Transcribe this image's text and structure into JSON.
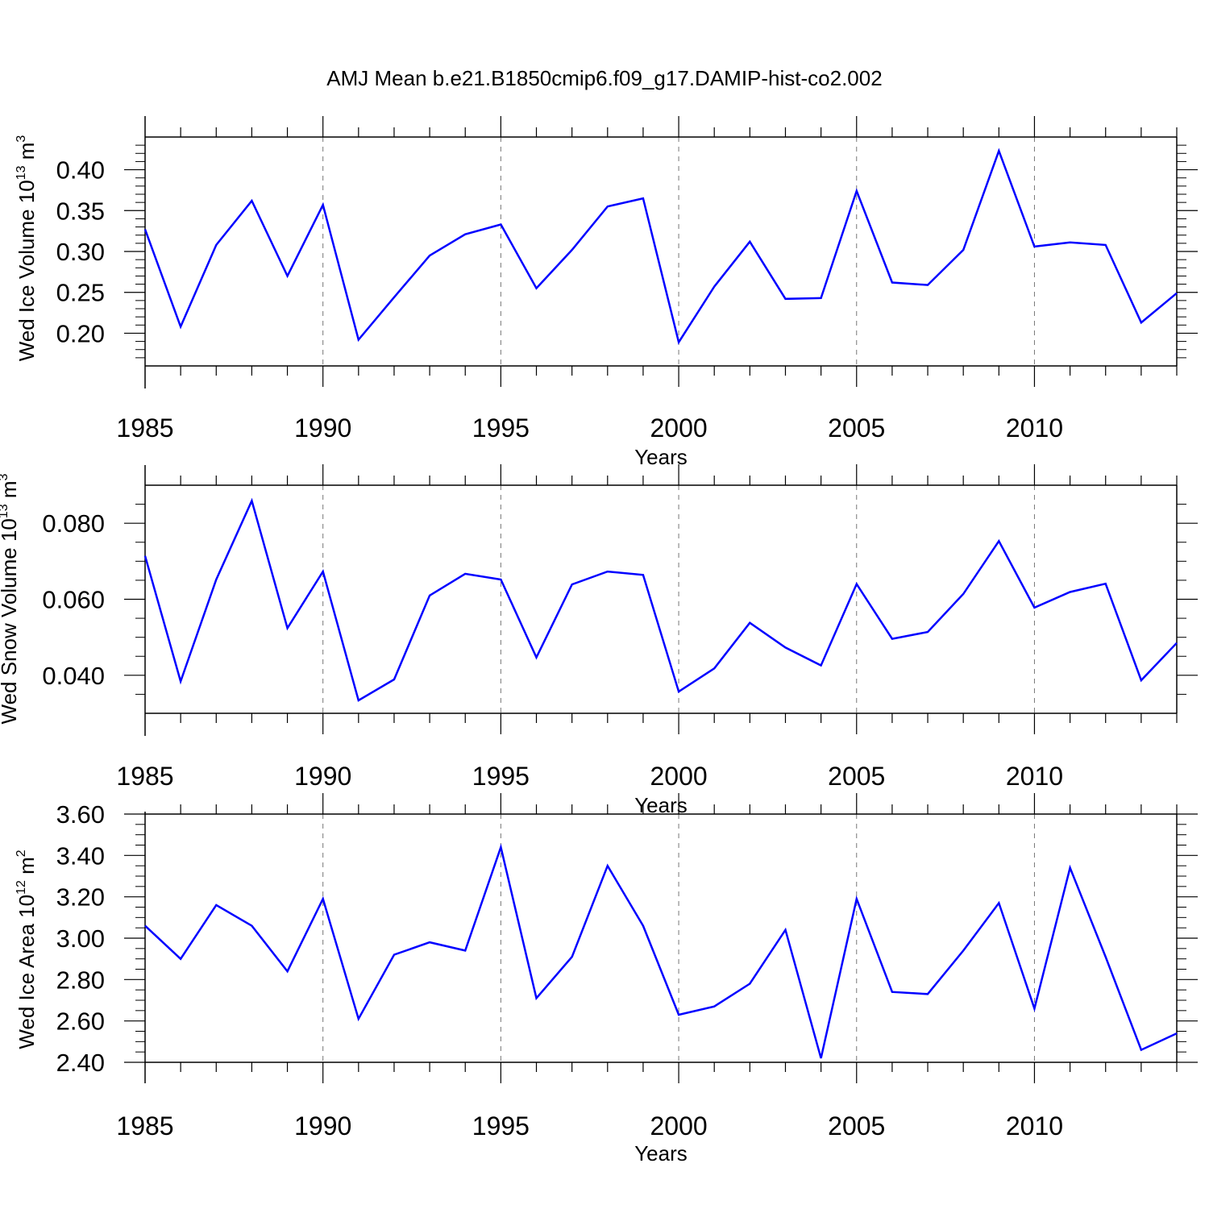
{
  "title": "AMJ Mean b.e21.B1850cmip6.f09_g17.DAMIP-hist-co2.002",
  "colors": {
    "line": "#0000ff",
    "axis": "#000000",
    "grid": "#777777"
  },
  "chart_data": [
    {
      "type": "line",
      "ylabel_main": "Wed Ice Volume 10",
      "ylabel_exp": "13",
      "ylabel_unit": "m",
      "ylabel_unit_exp": "3",
      "xlabel": "Years",
      "xlim": [
        1985,
        2014
      ],
      "ylim": [
        0.16,
        0.44
      ],
      "y_major_ticks": [
        0.2,
        0.25,
        0.3,
        0.35,
        0.4
      ],
      "y_tick_labels": [
        "0.20",
        "0.25",
        "0.30",
        "0.35",
        "0.40"
      ],
      "y_minor_step": 0.01,
      "x_major_ticks": [
        1985,
        1990,
        1995,
        2000,
        2005,
        2010
      ],
      "x_tick_labels": [
        "1985",
        "1990",
        "1995",
        "2000",
        "2005",
        "2010"
      ],
      "grid": "vertical dashed at major x ticks",
      "x": [
        1985,
        1986,
        1987,
        1988,
        1989,
        1990,
        1991,
        1992,
        1993,
        1994,
        1995,
        1996,
        1997,
        1998,
        1999,
        2000,
        2001,
        2002,
        2003,
        2004,
        2005,
        2006,
        2007,
        2008,
        2009,
        2010,
        2011,
        2012,
        2013,
        2014
      ],
      "values": [
        0.327,
        0.208,
        0.308,
        0.362,
        0.27,
        0.357,
        0.192,
        0.244,
        0.295,
        0.321,
        0.333,
        0.255,
        0.302,
        0.355,
        0.365,
        0.189,
        0.257,
        0.312,
        0.242,
        0.243,
        0.374,
        0.262,
        0.259,
        0.302,
        0.423,
        0.306,
        0.311,
        0.308,
        0.213,
        0.249
      ]
    },
    {
      "type": "line",
      "ylabel_main": "Wed Snow Volume 10",
      "ylabel_exp": "13",
      "ylabel_unit": "m",
      "ylabel_unit_exp": "3",
      "xlabel": "Years",
      "xlim": [
        1985,
        2014
      ],
      "ylim": [
        0.03,
        0.09
      ],
      "y_major_ticks": [
        0.04,
        0.06,
        0.08
      ],
      "y_tick_labels": [
        "0.040",
        "0.060",
        "0.080"
      ],
      "y_minor_step": 0.005,
      "x_major_ticks": [
        1985,
        1990,
        1995,
        2000,
        2005,
        2010
      ],
      "x_tick_labels": [
        "1985",
        "1990",
        "1995",
        "2000",
        "2005",
        "2010"
      ],
      "grid": "vertical dashed at major x ticks",
      "x": [
        1985,
        1986,
        1987,
        1988,
        1989,
        1990,
        1991,
        1992,
        1993,
        1994,
        1995,
        1996,
        1997,
        1998,
        1999,
        2000,
        2001,
        2002,
        2003,
        2004,
        2005,
        2006,
        2007,
        2008,
        2009,
        2010,
        2011,
        2012,
        2013,
        2014
      ],
      "values": [
        0.0714,
        0.0384,
        0.0652,
        0.0859,
        0.0524,
        0.0673,
        0.0334,
        0.0389,
        0.061,
        0.0667,
        0.0652,
        0.0447,
        0.0639,
        0.0673,
        0.0664,
        0.0357,
        0.0418,
        0.0538,
        0.0473,
        0.0426,
        0.064,
        0.0496,
        0.0514,
        0.0614,
        0.0753,
        0.0578,
        0.0619,
        0.0641,
        0.0387,
        0.0485
      ]
    },
    {
      "type": "line",
      "ylabel_main": "Wed Ice Area 10",
      "ylabel_exp": "12",
      "ylabel_unit": "m",
      "ylabel_unit_exp": "2",
      "xlabel": "Years",
      "xlim": [
        1985,
        2014
      ],
      "ylim": [
        2.4,
        3.6
      ],
      "y_major_ticks": [
        2.4,
        2.6,
        2.8,
        3.0,
        3.2,
        3.4,
        3.6
      ],
      "y_tick_labels": [
        "2.40",
        "2.60",
        "2.80",
        "3.00",
        "3.20",
        "3.40",
        "3.60"
      ],
      "y_minor_step": 0.05,
      "x_major_ticks": [
        1985,
        1990,
        1995,
        2000,
        2005,
        2010
      ],
      "x_tick_labels": [
        "1985",
        "1990",
        "1995",
        "2000",
        "2005",
        "2010"
      ],
      "grid": "vertical dashed at major x ticks",
      "x": [
        1985,
        1986,
        1987,
        1988,
        1989,
        1990,
        1991,
        1992,
        1993,
        1994,
        1995,
        1996,
        1997,
        1998,
        1999,
        2000,
        2001,
        2002,
        2003,
        2004,
        2005,
        2006,
        2007,
        2008,
        2009,
        2010,
        2011,
        2012,
        2013,
        2014
      ],
      "values": [
        3.06,
        2.9,
        3.16,
        3.06,
        2.84,
        3.19,
        2.61,
        2.92,
        2.98,
        2.94,
        3.44,
        2.71,
        2.91,
        3.35,
        3.06,
        2.63,
        2.67,
        2.78,
        3.04,
        2.42,
        3.19,
        2.74,
        2.73,
        2.94,
        3.17,
        2.66,
        3.34,
        2.91,
        2.46,
        2.54
      ]
    }
  ]
}
